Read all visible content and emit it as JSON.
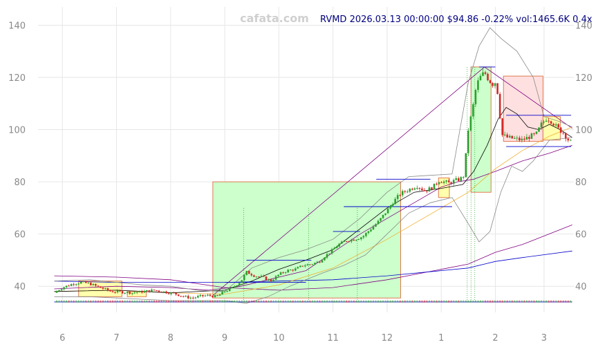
{
  "watermark": "cafata.com",
  "chart_data": {
    "type": "candlestick",
    "title": "RVMD 2026.03.13 00:00:00 $94.86 -0.22% vol:1465.6K 0.4x",
    "xlabel": "",
    "ylabel": "",
    "x_tick_labels": [
      "6",
      "7",
      "8",
      "9",
      "10",
      "11",
      "12",
      "1",
      "2",
      "3"
    ],
    "x_tick_positions": [
      0.0,
      1.0,
      2.0,
      3.0,
      4.0,
      5.0,
      6.0,
      7.0,
      8.0,
      8.9
    ],
    "x_range": [
      -0.45,
      9.45
    ],
    "y_ticks": [
      40,
      60,
      80,
      100,
      120,
      140
    ],
    "ylim": [
      30,
      147
    ],
    "grid": true,
    "colors": {
      "up": "#2ca02c",
      "down": "#d62728",
      "green_box": "#ccffcc",
      "red_box": "#ffe0e0",
      "yellow_box": "#ffff99",
      "box_border": "#e07a50",
      "purple": "#800080",
      "blue": "#0000cc",
      "orange": "#f0b030",
      "black": "#000000",
      "gray": "#888888"
    },
    "price_path": [
      [
        -0.15,
        37.5
      ],
      [
        0.0,
        39.5
      ],
      [
        0.2,
        41.0
      ],
      [
        0.35,
        41.5
      ],
      [
        0.5,
        41.0
      ],
      [
        0.7,
        39.5
      ],
      [
        0.9,
        38.0
      ],
      [
        1.1,
        37.8
      ],
      [
        1.3,
        37.5
      ],
      [
        1.5,
        38.0
      ],
      [
        1.7,
        38.5
      ],
      [
        1.9,
        37.8
      ],
      [
        2.1,
        37.0
      ],
      [
        2.25,
        36.0
      ],
      [
        2.4,
        35.5
      ],
      [
        2.55,
        36.2
      ],
      [
        2.7,
        36.5
      ],
      [
        2.85,
        36.0
      ],
      [
        3.0,
        38.0
      ],
      [
        3.15,
        39.5
      ],
      [
        3.3,
        42.0
      ],
      [
        3.4,
        45.5
      ],
      [
        3.55,
        44.0
      ],
      [
        3.7,
        43.5
      ],
      [
        3.85,
        42.0
      ],
      [
        4.0,
        44.5
      ],
      [
        4.15,
        46.0
      ],
      [
        4.3,
        46.5
      ],
      [
        4.45,
        48.0
      ],
      [
        4.6,
        48.5
      ],
      [
        4.75,
        49.5
      ],
      [
        4.85,
        51.5
      ],
      [
        5.0,
        54.0
      ],
      [
        5.1,
        56.0
      ],
      [
        5.25,
        57.5
      ],
      [
        5.4,
        58.0
      ],
      [
        5.55,
        59.0
      ],
      [
        5.7,
        62.0
      ],
      [
        5.85,
        65.0
      ],
      [
        6.0,
        69.0
      ],
      [
        6.1,
        72.0
      ],
      [
        6.25,
        75.5
      ],
      [
        6.4,
        77.0
      ],
      [
        6.55,
        78.5
      ],
      [
        6.7,
        76.5
      ],
      [
        6.85,
        78.0
      ],
      [
        6.95,
        80.5
      ],
      [
        7.05,
        80.0
      ],
      [
        7.15,
        79.5
      ],
      [
        7.25,
        80.5
      ],
      [
        7.35,
        81.0
      ],
      [
        7.42,
        82.5
      ],
      [
        7.5,
        100.0
      ],
      [
        7.58,
        108.0
      ],
      [
        7.65,
        117.0
      ],
      [
        7.72,
        120.0
      ],
      [
        7.8,
        122.0
      ],
      [
        7.88,
        119.0
      ],
      [
        7.95,
        117.5
      ],
      [
        8.02,
        118.5
      ],
      [
        8.12,
        98.0
      ],
      [
        8.22,
        97.0
      ],
      [
        8.35,
        96.5
      ],
      [
        8.5,
        96.0
      ],
      [
        8.65,
        97.5
      ],
      [
        8.75,
        98.0
      ],
      [
        8.85,
        102.0
      ],
      [
        8.95,
        104.5
      ],
      [
        9.05,
        103.0
      ],
      [
        9.15,
        100.5
      ],
      [
        9.25,
        99.0
      ],
      [
        9.35,
        96.0
      ],
      [
        9.42,
        94.86
      ]
    ],
    "boxes": [
      {
        "color": "green",
        "x0": 2.78,
        "x1": 6.25,
        "y0": 35.5,
        "y1": 80.0
      },
      {
        "color": "green",
        "x0": 7.55,
        "x1": 7.92,
        "y0": 76.0,
        "y1": 124.0
      },
      {
        "color": "red",
        "x0": 8.15,
        "x1": 8.88,
        "y0": 95.5,
        "y1": 120.5
      },
      {
        "color": "yellow",
        "x0": 6.95,
        "x1": 7.15,
        "y0": 74.0,
        "y1": 81.5
      },
      {
        "color": "yellow",
        "x0": 8.88,
        "x1": 9.2,
        "y0": 96.0,
        "y1": 105.0
      },
      {
        "color": "yellow",
        "x0": 1.2,
        "x1": 1.55,
        "y0": 36.0,
        "y1": 38.0
      },
      {
        "color": "yellow",
        "x0": 0.3,
        "x1": 1.1,
        "y0": 36.0,
        "y1": 42.0
      }
    ],
    "levels": [
      {
        "x0": 3.4,
        "x1": 4.6,
        "y": 50.0
      },
      {
        "x0": 3.0,
        "x1": 4.5,
        "y": 41.5
      },
      {
        "x0": 5.0,
        "x1": 5.5,
        "y": 61.0
      },
      {
        "x0": 5.2,
        "x1": 7.2,
        "y": 70.5
      },
      {
        "x0": 5.8,
        "x1": 6.8,
        "y": 81.0
      },
      {
        "x0": 7.7,
        "x1": 8.0,
        "y": 124.0
      },
      {
        "x0": 8.2,
        "x1": 9.4,
        "y": 105.5
      },
      {
        "x0": 8.2,
        "x1": 9.4,
        "y": 93.5
      },
      {
        "x0": -0.15,
        "x1": 9.42,
        "y": 34.0
      }
    ],
    "lines": [
      {
        "color": "purple",
        "width": 0.8,
        "points": [
          [
            -0.15,
            44.0
          ],
          [
            1.0,
            43.5
          ],
          [
            2.0,
            42.5
          ],
          [
            3.0,
            39.5
          ],
          [
            4.0,
            38.5
          ],
          [
            5.0,
            39.5
          ],
          [
            6.0,
            42.5
          ],
          [
            7.0,
            46.5
          ],
          [
            7.5,
            48.5
          ],
          [
            8.0,
            53.0
          ],
          [
            8.5,
            56.0
          ],
          [
            9.42,
            63.5
          ]
        ]
      },
      {
        "color": "blue",
        "width": 0.8,
        "points": [
          [
            -0.15,
            42.0
          ],
          [
            1.0,
            41.5
          ],
          [
            2.0,
            41.5
          ],
          [
            3.0,
            41.5
          ],
          [
            4.0,
            42.0
          ],
          [
            5.0,
            42.5
          ],
          [
            6.0,
            44.0
          ],
          [
            7.0,
            46.0
          ],
          [
            7.5,
            47.0
          ],
          [
            8.0,
            49.5
          ],
          [
            8.5,
            51.0
          ],
          [
            9.42,
            53.5
          ]
        ]
      },
      {
        "color": "purple",
        "width": 0.8,
        "points": [
          [
            2.78,
            36.5
          ],
          [
            7.8,
            124.0
          ],
          [
            9.42,
            100.5
          ]
        ]
      },
      {
        "color": "purple",
        "width": 0.8,
        "points": [
          [
            -0.15,
            39.0
          ],
          [
            1.0,
            40.0
          ],
          [
            2.0,
            39.5
          ],
          [
            2.7,
            38.5
          ],
          [
            3.3,
            40.0
          ],
          [
            4.5,
            46.0
          ],
          [
            5.5,
            60.0
          ],
          [
            6.5,
            72.0
          ],
          [
            7.0,
            78.0
          ],
          [
            7.3,
            80.0
          ],
          [
            7.6,
            81.0
          ],
          [
            8.0,
            84.0
          ],
          [
            8.5,
            88.0
          ],
          [
            9.0,
            91.0
          ],
          [
            9.42,
            94.0
          ]
        ]
      },
      {
        "color": "orange",
        "width": 0.8,
        "points": [
          [
            -0.15,
            38.0
          ],
          [
            1.0,
            38.5
          ],
          [
            2.0,
            37.5
          ],
          [
            3.0,
            37.0
          ],
          [
            4.0,
            40.5
          ],
          [
            5.0,
            47.0
          ],
          [
            6.0,
            58.0
          ],
          [
            7.0,
            70.0
          ],
          [
            7.5,
            76.0
          ],
          [
            8.0,
            85.0
          ],
          [
            8.5,
            92.0
          ],
          [
            9.0,
            97.5
          ],
          [
            9.42,
            101.0
          ]
        ]
      },
      {
        "color": "black",
        "width": 0.8,
        "points": [
          [
            -0.15,
            38.0
          ],
          [
            1.0,
            38.5
          ],
          [
            2.0,
            37.5
          ],
          [
            3.0,
            38.5
          ],
          [
            3.5,
            42.0
          ],
          [
            4.0,
            46.5
          ],
          [
            4.5,
            50.0
          ],
          [
            5.0,
            54.0
          ],
          [
            5.5,
            62.0
          ],
          [
            6.0,
            70.0
          ],
          [
            6.5,
            76.0
          ],
          [
            7.0,
            77.5
          ],
          [
            7.4,
            79.0
          ],
          [
            7.6,
            84.0
          ],
          [
            7.85,
            94.0
          ],
          [
            8.05,
            104.0
          ],
          [
            8.2,
            108.5
          ],
          [
            8.4,
            106.0
          ],
          [
            8.6,
            101.0
          ],
          [
            8.8,
            100.0
          ],
          [
            9.0,
            102.0
          ],
          [
            9.2,
            100.0
          ],
          [
            9.42,
            97.0
          ]
        ]
      },
      {
        "color": "gray",
        "width": 0.8,
        "points": [
          [
            -0.15,
            42.0
          ],
          [
            0.5,
            42.5
          ],
          [
            1.0,
            41.5
          ],
          [
            1.5,
            40.5
          ],
          [
            2.0,
            40.0
          ],
          [
            2.5,
            38.5
          ],
          [
            3.0,
            38.0
          ],
          [
            3.5,
            47.0
          ],
          [
            4.0,
            51.0
          ],
          [
            4.5,
            54.0
          ],
          [
            5.0,
            58.0
          ],
          [
            5.5,
            66.0
          ],
          [
            6.0,
            76.0
          ],
          [
            6.4,
            82.0
          ],
          [
            6.8,
            82.5
          ],
          [
            7.2,
            83.0
          ],
          [
            7.5,
            118.0
          ],
          [
            7.7,
            132.0
          ],
          [
            7.9,
            139.0
          ],
          [
            8.1,
            135.0
          ],
          [
            8.4,
            130.0
          ],
          [
            8.7,
            120.0
          ],
          [
            8.9,
            105.0
          ],
          [
            9.2,
            103.0
          ],
          [
            9.42,
            101.0
          ]
        ]
      },
      {
        "color": "gray",
        "width": 0.8,
        "points": [
          [
            -0.15,
            36.0
          ],
          [
            0.5,
            36.0
          ],
          [
            1.0,
            35.5
          ],
          [
            1.5,
            35.0
          ],
          [
            2.0,
            34.5
          ],
          [
            2.5,
            34.5
          ],
          [
            3.0,
            34.5
          ],
          [
            3.4,
            33.5
          ],
          [
            3.8,
            36.0
          ],
          [
            4.2,
            40.0
          ],
          [
            4.8,
            45.0
          ],
          [
            5.2,
            48.0
          ],
          [
            5.6,
            52.0
          ],
          [
            6.0,
            60.0
          ],
          [
            6.4,
            68.0
          ],
          [
            6.8,
            72.0
          ],
          [
            7.2,
            74.0
          ],
          [
            7.5,
            64.0
          ],
          [
            7.7,
            57.0
          ],
          [
            7.9,
            61.0
          ],
          [
            8.1,
            76.0
          ],
          [
            8.3,
            86.0
          ],
          [
            8.5,
            84.0
          ],
          [
            8.7,
            88.0
          ],
          [
            9.0,
            96.0
          ],
          [
            9.42,
            97.0
          ]
        ]
      }
    ],
    "vlines": [
      3.35,
      4.55,
      5.45,
      7.48,
      7.55,
      7.62
    ],
    "volume_baseline": 34.2
  }
}
